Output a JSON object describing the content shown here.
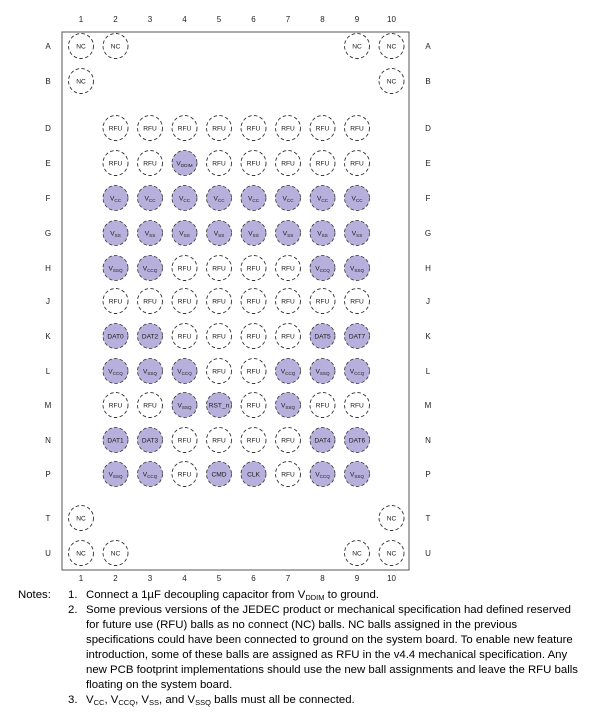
{
  "columns": [
    "1",
    "2",
    "3",
    "4",
    "5",
    "6",
    "7",
    "8",
    "9",
    "10"
  ],
  "rows": [
    "A",
    "B",
    "D",
    "E",
    "F",
    "G",
    "H",
    "J",
    "K",
    "L",
    "M",
    "N",
    "P",
    "T",
    "U"
  ],
  "colors": {
    "filled": "#b8b0dc",
    "outline": "#333333",
    "package": "#555555"
  },
  "balls": [
    {
      "row": "A",
      "col": "1",
      "label": "NC",
      "filled": false
    },
    {
      "row": "A",
      "col": "2",
      "label": "NC",
      "filled": false
    },
    {
      "row": "A",
      "col": "9",
      "label": "NC",
      "filled": false
    },
    {
      "row": "A",
      "col": "10",
      "label": "NC",
      "filled": false
    },
    {
      "row": "B",
      "col": "1",
      "label": "NC",
      "filled": false
    },
    {
      "row": "B",
      "col": "10",
      "label": "NC",
      "filled": false
    },
    {
      "row": "D",
      "col": "2",
      "label": "RFU",
      "filled": false
    },
    {
      "row": "D",
      "col": "3",
      "label": "RFU",
      "filled": false
    },
    {
      "row": "D",
      "col": "4",
      "label": "RFU",
      "filled": false
    },
    {
      "row": "D",
      "col": "5",
      "label": "RFU",
      "filled": false
    },
    {
      "row": "D",
      "col": "6",
      "label": "RFU",
      "filled": false
    },
    {
      "row": "D",
      "col": "7",
      "label": "RFU",
      "filled": false
    },
    {
      "row": "D",
      "col": "8",
      "label": "RFU",
      "filled": false
    },
    {
      "row": "D",
      "col": "9",
      "label": "RFU",
      "filled": false
    },
    {
      "row": "E",
      "col": "2",
      "label": "RFU",
      "filled": false
    },
    {
      "row": "E",
      "col": "3",
      "label": "RFU",
      "filled": false
    },
    {
      "row": "E",
      "col": "4",
      "label": "V",
      "sub": "DDIM",
      "filled": true
    },
    {
      "row": "E",
      "col": "5",
      "label": "RFU",
      "filled": false
    },
    {
      "row": "E",
      "col": "6",
      "label": "RFU",
      "filled": false
    },
    {
      "row": "E",
      "col": "7",
      "label": "RFU",
      "filled": false
    },
    {
      "row": "E",
      "col": "8",
      "label": "RFU",
      "filled": false
    },
    {
      "row": "E",
      "col": "9",
      "label": "RFU",
      "filled": false
    },
    {
      "row": "F",
      "col": "2",
      "label": "V",
      "sub": "CC",
      "filled": true
    },
    {
      "row": "F",
      "col": "3",
      "label": "V",
      "sub": "CC",
      "filled": true
    },
    {
      "row": "F",
      "col": "4",
      "label": "V",
      "sub": "CC",
      "filled": true
    },
    {
      "row": "F",
      "col": "5",
      "label": "V",
      "sub": "CC",
      "filled": true
    },
    {
      "row": "F",
      "col": "6",
      "label": "V",
      "sub": "CC",
      "filled": true
    },
    {
      "row": "F",
      "col": "7",
      "label": "V",
      "sub": "CC",
      "filled": true
    },
    {
      "row": "F",
      "col": "8",
      "label": "V",
      "sub": "CC",
      "filled": true
    },
    {
      "row": "F",
      "col": "9",
      "label": "V",
      "sub": "CC",
      "filled": true
    },
    {
      "row": "G",
      "col": "2",
      "label": "V",
      "sub": "SS",
      "filled": true
    },
    {
      "row": "G",
      "col": "3",
      "label": "V",
      "sub": "SS",
      "filled": true
    },
    {
      "row": "G",
      "col": "4",
      "label": "V",
      "sub": "SS",
      "filled": true
    },
    {
      "row": "G",
      "col": "5",
      "label": "V",
      "sub": "SS",
      "filled": true
    },
    {
      "row": "G",
      "col": "6",
      "label": "V",
      "sub": "SS",
      "filled": true
    },
    {
      "row": "G",
      "col": "7",
      "label": "V",
      "sub": "SS",
      "filled": true
    },
    {
      "row": "G",
      "col": "8",
      "label": "V",
      "sub": "SS",
      "filled": true
    },
    {
      "row": "G",
      "col": "9",
      "label": "V",
      "sub": "SS",
      "filled": true
    },
    {
      "row": "H",
      "col": "2",
      "label": "V",
      "sub": "SSQ",
      "filled": true
    },
    {
      "row": "H",
      "col": "3",
      "label": "V",
      "sub": "CCQ",
      "filled": true
    },
    {
      "row": "H",
      "col": "4",
      "label": "RFU",
      "filled": false
    },
    {
      "row": "H",
      "col": "5",
      "label": "RFU",
      "filled": false
    },
    {
      "row": "H",
      "col": "6",
      "label": "RFU",
      "filled": false
    },
    {
      "row": "H",
      "col": "7",
      "label": "RFU",
      "filled": false
    },
    {
      "row": "H",
      "col": "8",
      "label": "V",
      "sub": "CCQ",
      "filled": true
    },
    {
      "row": "H",
      "col": "9",
      "label": "V",
      "sub": "SSQ",
      "filled": true
    },
    {
      "row": "J",
      "col": "2",
      "label": "RFU",
      "filled": false
    },
    {
      "row": "J",
      "col": "3",
      "label": "RFU",
      "filled": false
    },
    {
      "row": "J",
      "col": "4",
      "label": "RFU",
      "filled": false
    },
    {
      "row": "J",
      "col": "5",
      "label": "RFU",
      "filled": false
    },
    {
      "row": "J",
      "col": "6",
      "label": "RFU",
      "filled": false
    },
    {
      "row": "J",
      "col": "7",
      "label": "RFU",
      "filled": false
    },
    {
      "row": "J",
      "col": "8",
      "label": "RFU",
      "filled": false
    },
    {
      "row": "J",
      "col": "9",
      "label": "RFU",
      "filled": false
    },
    {
      "row": "K",
      "col": "2",
      "label": "DAT0",
      "filled": true
    },
    {
      "row": "K",
      "col": "3",
      "label": "DAT2",
      "filled": true
    },
    {
      "row": "K",
      "col": "4",
      "label": "RFU",
      "filled": false
    },
    {
      "row": "K",
      "col": "5",
      "label": "RFU",
      "filled": false
    },
    {
      "row": "K",
      "col": "6",
      "label": "RFU",
      "filled": false
    },
    {
      "row": "K",
      "col": "7",
      "label": "RFU",
      "filled": false
    },
    {
      "row": "K",
      "col": "8",
      "label": "DAT5",
      "filled": true
    },
    {
      "row": "K",
      "col": "9",
      "label": "DAT7",
      "filled": true
    },
    {
      "row": "L",
      "col": "2",
      "label": "V",
      "sub": "CCQ",
      "filled": true
    },
    {
      "row": "L",
      "col": "3",
      "label": "V",
      "sub": "SSQ",
      "filled": true
    },
    {
      "row": "L",
      "col": "4",
      "label": "V",
      "sub": "CCQ",
      "filled": true
    },
    {
      "row": "L",
      "col": "5",
      "label": "RFU",
      "filled": false
    },
    {
      "row": "L",
      "col": "6",
      "label": "RFU",
      "filled": false
    },
    {
      "row": "L",
      "col": "7",
      "label": "V",
      "sub": "CCQ",
      "filled": true
    },
    {
      "row": "L",
      "col": "8",
      "label": "V",
      "sub": "SSQ",
      "filled": true
    },
    {
      "row": "L",
      "col": "9",
      "label": "V",
      "sub": "CCQ",
      "filled": true
    },
    {
      "row": "M",
      "col": "2",
      "label": "RFU",
      "filled": false
    },
    {
      "row": "M",
      "col": "3",
      "label": "RFU",
      "filled": false
    },
    {
      "row": "M",
      "col": "4",
      "label": "V",
      "sub": "SSQ",
      "filled": true
    },
    {
      "row": "M",
      "col": "5",
      "label": "RST_n",
      "filled": true
    },
    {
      "row": "M",
      "col": "6",
      "label": "RFU",
      "filled": false
    },
    {
      "row": "M",
      "col": "7",
      "label": "V",
      "sub": "SSQ",
      "filled": true
    },
    {
      "row": "M",
      "col": "8",
      "label": "RFU",
      "filled": false
    },
    {
      "row": "M",
      "col": "9",
      "label": "RFU",
      "filled": false
    },
    {
      "row": "N",
      "col": "2",
      "label": "DAT1",
      "filled": true
    },
    {
      "row": "N",
      "col": "3",
      "label": "DAT3",
      "filled": true
    },
    {
      "row": "N",
      "col": "4",
      "label": "RFU",
      "filled": false
    },
    {
      "row": "N",
      "col": "5",
      "label": "RFU",
      "filled": false
    },
    {
      "row": "N",
      "col": "6",
      "label": "RFU",
      "filled": false
    },
    {
      "row": "N",
      "col": "7",
      "label": "RFU",
      "filled": false
    },
    {
      "row": "N",
      "col": "8",
      "label": "DAT4",
      "filled": true
    },
    {
      "row": "N",
      "col": "9",
      "label": "DAT6",
      "filled": true
    },
    {
      "row": "P",
      "col": "2",
      "label": "V",
      "sub": "SSQ",
      "filled": true
    },
    {
      "row": "P",
      "col": "3",
      "label": "V",
      "sub": "CCQ",
      "filled": true
    },
    {
      "row": "P",
      "col": "4",
      "label": "RFU",
      "filled": false
    },
    {
      "row": "P",
      "col": "5",
      "label": "CMD",
      "filled": true
    },
    {
      "row": "P",
      "col": "6",
      "label": "CLK",
      "filled": true
    },
    {
      "row": "P",
      "col": "7",
      "label": "RFU",
      "filled": false
    },
    {
      "row": "P",
      "col": "8",
      "label": "V",
      "sub": "CCQ",
      "filled": true
    },
    {
      "row": "P",
      "col": "9",
      "label": "V",
      "sub": "SSQ",
      "filled": true
    },
    {
      "row": "T",
      "col": "1",
      "label": "NC",
      "filled": false
    },
    {
      "row": "T",
      "col": "10",
      "label": "NC",
      "filled": false
    },
    {
      "row": "U",
      "col": "1",
      "label": "NC",
      "filled": false
    },
    {
      "row": "U",
      "col": "2",
      "label": "NC",
      "filled": false
    },
    {
      "row": "U",
      "col": "9",
      "label": "NC",
      "filled": false
    },
    {
      "row": "U",
      "col": "10",
      "label": "NC",
      "filled": false
    }
  ],
  "notes": {
    "heading": "Notes:",
    "items": [
      {
        "num": "1.",
        "parts": [
          {
            "t": "Connect a 1µF decoupling capacitor from V"
          },
          {
            "sub": "DDIM"
          },
          {
            "t": " to ground."
          }
        ]
      },
      {
        "num": "2.",
        "parts": [
          {
            "t": "Some previous versions of the JEDEC product or mechanical specification had defined reserved for future use (RFU) balls as no connect (NC) balls. NC balls assigned in the previous specifications could have been connected to ground on the system board. To enable new feature introduction, some of these balls are assigned as RFU in the v4.4 mechanical specification. Any new PCB footprint implementations should use the new ball assignments and leave the RFU balls floating on the system board."
          }
        ]
      },
      {
        "num": "3.",
        "parts": [
          {
            "t": "V"
          },
          {
            "sub": "CC"
          },
          {
            "t": ", V"
          },
          {
            "sub": "CCQ"
          },
          {
            "t": ", V"
          },
          {
            "sub": "SS"
          },
          {
            "t": ", and V"
          },
          {
            "sub": "SSQ"
          },
          {
            "t": " balls must all be connected."
          }
        ]
      }
    ]
  }
}
